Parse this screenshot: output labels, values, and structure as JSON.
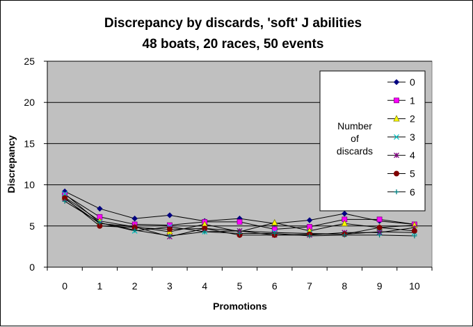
{
  "chart_data": {
    "type": "line",
    "title": "Discrepancy by discards, 'soft' J abilities",
    "subtitle": "48 boats, 20 races, 50 events",
    "xlabel": "Promotions",
    "ylabel": "Discrepancy",
    "x": [
      0,
      1,
      2,
      3,
      4,
      5,
      6,
      7,
      8,
      9,
      10
    ],
    "ylim": [
      0,
      25
    ],
    "yticks": [
      0,
      5,
      10,
      15,
      20,
      25
    ],
    "grid": "horizontal",
    "plot_background": "#c0c0c0",
    "legend_position": "top-right",
    "legend_title": "Number of discards",
    "series": [
      {
        "name": "0",
        "color": "#000080",
        "marker": "diamond",
        "values": [
          9.2,
          7.1,
          5.9,
          6.3,
          5.6,
          5.9,
          5.3,
          5.7,
          6.5,
          5.6,
          5.2
        ]
      },
      {
        "name": "1",
        "color": "#ff00ff",
        "marker": "square",
        "values": [
          8.8,
          6.1,
          5.2,
          5.1,
          5.5,
          5.5,
          4.6,
          4.9,
          5.8,
          5.8,
          5.2
        ]
      },
      {
        "name": "2",
        "color": "#ffff00",
        "marker": "triangle",
        "values": [
          8.5,
          5.6,
          4.9,
          4.3,
          5.2,
          4.3,
          5.4,
          4.4,
          5.3,
          4.8,
          5.1
        ]
      },
      {
        "name": "3",
        "color": "#00c0c0",
        "marker": "x",
        "values": [
          8.9,
          5.4,
          4.4,
          4.9,
          4.3,
          4.4,
          4.2,
          4.1,
          4.0,
          4.3,
          4.2
        ]
      },
      {
        "name": "4",
        "color": "#800080",
        "marker": "star",
        "values": [
          8.3,
          5.3,
          4.9,
          3.7,
          4.7,
          4.4,
          3.9,
          3.9,
          4.2,
          4.2,
          4.8
        ]
      },
      {
        "name": "5",
        "color": "#800000",
        "marker": "circle",
        "values": [
          8.4,
          5.0,
          4.8,
          4.6,
          4.7,
          3.9,
          3.9,
          4.0,
          4.0,
          4.8,
          4.4
        ]
      },
      {
        "name": "6",
        "color": "#008080",
        "marker": "plus",
        "values": [
          8.0,
          5.4,
          4.5,
          3.8,
          4.3,
          4.1,
          4.1,
          3.8,
          3.9,
          3.9,
          3.8
        ]
      }
    ]
  }
}
